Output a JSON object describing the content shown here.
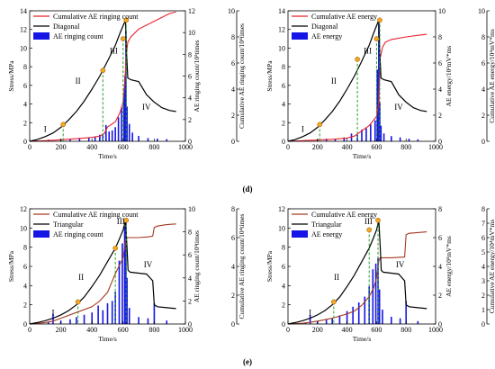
{
  "panel_labels": [
    "(d)",
    "(e)"
  ],
  "colors": {
    "stress": "#000000",
    "cum_red": "#e8212a",
    "cum_brown": "#a33a22",
    "bar": "#1515e6",
    "point": "#f5a623",
    "dash": "#2aa02a"
  },
  "chart_data": [
    {
      "type": "line",
      "title": "",
      "xlabel": "Time/s",
      "ylabel": "Stress/MPa",
      "y2label_inner": "AE ringing count/10³times",
      "y3label_outer": "Cumulative AE ringing count/10⁴times",
      "xlim": [
        0,
        1000
      ],
      "ylim": [
        0,
        14
      ],
      "y2lim": [
        0,
        12
      ],
      "y3lim": [
        0,
        10
      ],
      "xticks": [
        "0",
        "200",
        "400",
        "600",
        "800",
        "1000"
      ],
      "yticks": [
        "0",
        "2",
        "4",
        "6",
        "8",
        "10",
        "12",
        "14"
      ],
      "y2ticks": [
        "0",
        "2",
        "4",
        "6",
        "8",
        "10",
        "12"
      ],
      "y3ticks": [
        "0",
        "2",
        "4",
        "6",
        "8",
        "10"
      ],
      "legend": [
        "Cumulative AE ringing count",
        "Diagonal",
        "AE ringing count"
      ],
      "legend_position": "top-left",
      "stages": [
        "I",
        "II",
        "III",
        "IV"
      ],
      "stage_pos": [
        [
          100,
          1.0
        ],
        [
          310,
          6.2
        ],
        [
          540,
          9.4
        ],
        [
          750,
          3.4
        ]
      ],
      "key_points": [
        [
          215,
          1.8
        ],
        [
          470,
          7.6
        ],
        [
          600,
          11.0
        ],
        [
          620,
          13.0
        ]
      ],
      "series": [
        {
          "name": "Diagonal",
          "axis": "left",
          "x": [
            0,
            50,
            100,
            150,
            200,
            250,
            300,
            350,
            400,
            450,
            500,
            550,
            580,
            600,
            615,
            622,
            630,
            650,
            700,
            750,
            800,
            850,
            900,
            940
          ],
          "y": [
            0,
            0.2,
            0.5,
            0.9,
            1.5,
            2.3,
            3.2,
            4.3,
            5.6,
            7.0,
            8.6,
            10.3,
            11.6,
            12.4,
            13.0,
            9.5,
            6.8,
            6.6,
            6.4,
            5.0,
            4.2,
            3.6,
            3.3,
            3.2
          ]
        },
        {
          "name": "Cumulative AE ringing count",
          "axis": "right_outer",
          "x": [
            0,
            100,
            200,
            300,
            400,
            450,
            480,
            500,
            550,
            580,
            600,
            612,
            620,
            630,
            650,
            700,
            800,
            900,
            940
          ],
          "y": [
            0,
            0.05,
            0.12,
            0.2,
            0.3,
            0.4,
            0.6,
            1.1,
            1.5,
            2.2,
            3.0,
            4.8,
            6.6,
            7.6,
            8.0,
            8.6,
            9.2,
            9.8,
            9.9
          ]
        },
        {
          "name": "AE ringing count",
          "axis": "right_inner",
          "kind": "bar",
          "x": [
            40,
            120,
            200,
            260,
            320,
            380,
            420,
            450,
            470,
            490,
            510,
            530,
            550,
            570,
            590,
            605,
            612,
            618,
            625,
            640,
            660,
            700,
            760,
            820,
            880
          ],
          "y": [
            0.1,
            0.15,
            0.2,
            0.25,
            0.3,
            0.35,
            0.45,
            0.6,
            0.7,
            1.5,
            0.9,
            1.0,
            1.3,
            2.2,
            3.1,
            4.5,
            6.0,
            10.2,
            3.2,
            1.6,
            0.8,
            0.5,
            0.3,
            0.25,
            0.2
          ]
        }
      ]
    },
    {
      "type": "line",
      "title": "",
      "xlabel": "Time/s",
      "ylabel": "Stress/MPa",
      "y2label_inner": "AE energy/10³mV*ms",
      "y3label_outer": "Cumulative AE energy/10⁴mV*ms",
      "xlim": [
        0,
        1000
      ],
      "ylim": [
        0,
        14
      ],
      "y2lim": [
        0,
        10
      ],
      "y3lim": [
        0,
        10
      ],
      "xticks": [
        "0",
        "200",
        "400",
        "600",
        "800",
        "1000"
      ],
      "yticks": [
        "0",
        "2",
        "4",
        "6",
        "8",
        "10",
        "12",
        "14"
      ],
      "y2ticks": [
        "0",
        "2",
        "4",
        "6",
        "8",
        "10"
      ],
      "y3ticks": [
        "0",
        "2",
        "4",
        "6",
        "8",
        "10"
      ],
      "legend": [
        "Cumulative AE energy",
        "Diagonal",
        "AE energy"
      ],
      "legend_position": "top-left",
      "stages": [
        "I",
        "II",
        "III",
        "IV"
      ],
      "stage_pos": [
        [
          100,
          1.0
        ],
        [
          310,
          6.2
        ],
        [
          540,
          9.4
        ],
        [
          750,
          3.4
        ]
      ],
      "key_points": [
        [
          215,
          1.8
        ],
        [
          470,
          8.8
        ],
        [
          600,
          11.0
        ],
        [
          622,
          13.0
        ]
      ],
      "series": [
        {
          "name": "Diagonal",
          "axis": "left",
          "x": [
            0,
            50,
            100,
            150,
            200,
            250,
            300,
            350,
            400,
            450,
            500,
            550,
            580,
            600,
            615,
            622,
            630,
            650,
            700,
            750,
            800,
            850,
            900,
            940
          ],
          "y": [
            0,
            0.2,
            0.5,
            0.9,
            1.5,
            2.3,
            3.2,
            4.3,
            5.6,
            7.0,
            8.6,
            10.3,
            11.6,
            12.4,
            13.0,
            9.5,
            6.8,
            6.6,
            6.4,
            5.0,
            4.2,
            3.6,
            3.3,
            3.2
          ]
        },
        {
          "name": "Cumulative AE energy",
          "axis": "right_outer",
          "x": [
            0,
            100,
            200,
            300,
            400,
            450,
            500,
            550,
            600,
            615,
            625,
            640,
            660,
            700,
            800,
            900,
            940
          ],
          "y": [
            0,
            0.05,
            0.1,
            0.15,
            0.25,
            0.4,
            0.8,
            1.2,
            1.9,
            3.0,
            6.4,
            7.2,
            7.6,
            7.8,
            8.0,
            8.15,
            8.2
          ]
        },
        {
          "name": "AE energy",
          "axis": "right_inner",
          "kind": "bar",
          "x": [
            40,
            120,
            200,
            260,
            320,
            380,
            430,
            470,
            500,
            530,
            560,
            590,
            605,
            615,
            622,
            630,
            650,
            700,
            760,
            820,
            880
          ],
          "y": [
            0.05,
            0.1,
            0.15,
            0.2,
            0.2,
            0.3,
            0.6,
            0.5,
            0.9,
            1.0,
            1.3,
            1.6,
            5.5,
            9.0,
            3.0,
            1.2,
            0.6,
            0.4,
            0.3,
            0.2,
            0.15
          ]
        }
      ]
    },
    {
      "type": "line",
      "title": "",
      "xlabel": "Time/s",
      "ylabel": "Stress/MPa",
      "y2label_inner": "AE ringing count/10³times",
      "y3label_outer": "Cumulative AE ringing count/10⁴times",
      "xlim": [
        0,
        1000
      ],
      "ylim": [
        0,
        12
      ],
      "y2lim": [
        0,
        10
      ],
      "y3lim": [
        0,
        8
      ],
      "xticks": [
        "0",
        "200",
        "400",
        "600",
        "800",
        "1000"
      ],
      "yticks": [
        "0",
        "2",
        "4",
        "6",
        "8",
        "10",
        "12"
      ],
      "y2ticks": [
        "0",
        "2",
        "4",
        "6",
        "8",
        "10"
      ],
      "y3ticks": [
        "0",
        "2",
        "4",
        "6",
        "8"
      ],
      "legend": [
        "Cumulative AE ringing count",
        "Triangular",
        "AE ringing count"
      ],
      "legend_position": "top-left",
      "stages": [
        "I",
        "II",
        "III",
        "IV"
      ],
      "stage_pos": [
        [
          150,
          0.9
        ],
        [
          330,
          4.6
        ],
        [
          585,
          10.4
        ],
        [
          760,
          5.9
        ]
      ],
      "key_points": [
        [
          310,
          2.3
        ],
        [
          550,
          7.9
        ],
        [
          620,
          10.8
        ]
      ],
      "series": [
        {
          "name": "Triangular",
          "axis": "left",
          "x": [
            0,
            50,
            100,
            150,
            200,
            250,
            300,
            350,
            400,
            450,
            500,
            550,
            580,
            600,
            615,
            625,
            632,
            645,
            700,
            750,
            790,
            800,
            820,
            880,
            940
          ],
          "y": [
            0,
            0.15,
            0.35,
            0.6,
            0.95,
            1.4,
            2.0,
            2.8,
            3.9,
            5.1,
            6.5,
            7.9,
            9.0,
            9.8,
            10.8,
            8.0,
            5.6,
            5.4,
            5.3,
            5.2,
            4.5,
            2.0,
            1.8,
            1.7,
            1.6
          ]
        },
        {
          "name": "Cumulative AE ringing count",
          "axis": "right_outer",
          "x": [
            0,
            100,
            150,
            200,
            300,
            400,
            450,
            500,
            550,
            600,
            615,
            625,
            640,
            700,
            760,
            790,
            800,
            820,
            880,
            940
          ],
          "y": [
            0,
            0.1,
            0.2,
            0.4,
            0.8,
            1.2,
            1.6,
            2.2,
            3.5,
            4.6,
            5.8,
            6.0,
            6.0,
            6.0,
            6.05,
            6.1,
            6.7,
            6.8,
            6.9,
            6.95
          ]
        },
        {
          "name": "AE ringing count",
          "axis": "right_inner",
          "kind": "bar",
          "x": [
            50,
            120,
            150,
            200,
            260,
            300,
            350,
            400,
            440,
            470,
            500,
            530,
            550,
            575,
            595,
            610,
            618,
            625,
            640,
            700,
            760,
            800,
            880
          ],
          "y": [
            0.1,
            0.2,
            0.9,
            0.3,
            0.4,
            0.6,
            0.8,
            1.0,
            1.6,
            1.2,
            1.8,
            2.0,
            2.8,
            5.5,
            7.0,
            8.5,
            9.0,
            4.0,
            1.4,
            0.6,
            0.5,
            1.8,
            0.3
          ]
        }
      ]
    },
    {
      "type": "line",
      "title": "",
      "xlabel": "Time/s",
      "ylabel": "Stress/MPa",
      "y2label_inner": "AE energy/10³mV*ms",
      "y3label_outer": "Cumulative AE energy/10⁴mV*ms",
      "xlim": [
        0,
        1000
      ],
      "ylim": [
        0,
        12
      ],
      "y2lim": [
        0,
        8
      ],
      "y3lim": [
        0,
        8
      ],
      "xticks": [
        "0",
        "200",
        "400",
        "600",
        "800",
        "1000"
      ],
      "yticks": [
        "0",
        "2",
        "4",
        "6",
        "8",
        "10",
        "12"
      ],
      "y2ticks": [
        "0",
        "2",
        "4",
        "6",
        "8"
      ],
      "y3ticks": [
        "0",
        "1",
        "2",
        "3",
        "4",
        "5",
        "6",
        "7",
        "8"
      ],
      "legend": [
        "Cumulative AE energy",
        "Triangular",
        "AE energy"
      ],
      "legend_position": "top-left",
      "stages": [
        "I",
        "II",
        "III",
        "IV"
      ],
      "stage_pos": [
        [
          150,
          0.9
        ],
        [
          330,
          4.6
        ],
        [
          545,
          10.4
        ],
        [
          760,
          5.9
        ]
      ],
      "key_points": [
        [
          310,
          2.3
        ],
        [
          550,
          9.8
        ],
        [
          610,
          10.8
        ]
      ],
      "series": [
        {
          "name": "Triangular",
          "axis": "left",
          "x": [
            0,
            50,
            100,
            150,
            200,
            250,
            300,
            350,
            400,
            450,
            500,
            550,
            580,
            600,
            615,
            625,
            632,
            645,
            700,
            750,
            790,
            800,
            820,
            880,
            940
          ],
          "y": [
            0,
            0.15,
            0.35,
            0.6,
            0.95,
            1.4,
            2.0,
            2.8,
            3.9,
            5.1,
            6.5,
            7.9,
            9.0,
            9.8,
            10.8,
            8.0,
            5.6,
            5.4,
            5.3,
            5.2,
            4.5,
            2.0,
            1.8,
            1.7,
            1.6
          ]
        },
        {
          "name": "Cumulative AE energy",
          "axis": "right_outer",
          "x": [
            0,
            100,
            150,
            200,
            300,
            400,
            450,
            500,
            550,
            580,
            600,
            615,
            625,
            640,
            700,
            790,
            800,
            820,
            880,
            940
          ],
          "y": [
            0,
            0.05,
            0.12,
            0.2,
            0.4,
            0.7,
            0.9,
            1.3,
            1.9,
            2.5,
            3.2,
            4.4,
            4.6,
            4.6,
            4.6,
            4.65,
            6.2,
            6.3,
            6.35,
            6.4
          ]
        },
        {
          "name": "AE energy",
          "axis": "right_inner",
          "kind": "bar",
          "x": [
            50,
            120,
            150,
            200,
            260,
            300,
            350,
            400,
            440,
            480,
            520,
            550,
            575,
            595,
            610,
            620,
            640,
            700,
            760,
            800,
            880
          ],
          "y": [
            0.05,
            0.1,
            0.6,
            0.2,
            0.3,
            0.4,
            0.6,
            0.9,
            1.2,
            1.5,
            1.9,
            2.6,
            3.8,
            4.2,
            4.6,
            2.4,
            1.0,
            0.5,
            0.4,
            1.6,
            0.2
          ]
        }
      ]
    }
  ]
}
